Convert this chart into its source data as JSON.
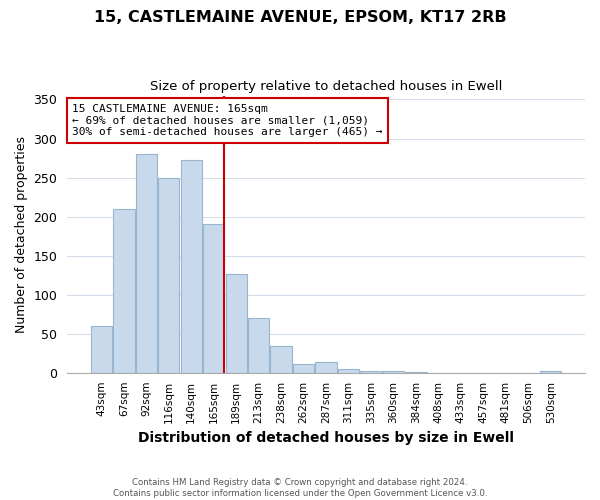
{
  "title": "15, CASTLEMAINE AVENUE, EPSOM, KT17 2RB",
  "subtitle": "Size of property relative to detached houses in Ewell",
  "xlabel": "Distribution of detached houses by size in Ewell",
  "ylabel": "Number of detached properties",
  "bar_labels": [
    "43sqm",
    "67sqm",
    "92sqm",
    "116sqm",
    "140sqm",
    "165sqm",
    "189sqm",
    "213sqm",
    "238sqm",
    "262sqm",
    "287sqm",
    "311sqm",
    "335sqm",
    "360sqm",
    "384sqm",
    "408sqm",
    "433sqm",
    "457sqm",
    "481sqm",
    "506sqm",
    "530sqm"
  ],
  "bar_values": [
    60,
    210,
    280,
    250,
    272,
    190,
    127,
    70,
    34,
    11,
    14,
    5,
    3,
    2,
    1,
    0,
    0,
    0,
    0,
    0,
    2
  ],
  "bar_color": "#c8d9ec",
  "bar_edge_color": "#9ab5d0",
  "vline_color": "#cc0000",
  "annotation_line1": "15 CASTLEMAINE AVENUE: 165sqm",
  "annotation_line2": "← 69% of detached houses are smaller (1,059)",
  "annotation_line3": "30% of semi-detached houses are larger (465) →",
  "annotation_box_edge_color": "#cc0000",
  "annotation_box_bg": "#ffffff",
  "ylim": [
    0,
    355
  ],
  "yticks": [
    0,
    50,
    100,
    150,
    200,
    250,
    300,
    350
  ],
  "title_fontsize": 11.5,
  "subtitle_fontsize": 9.5,
  "xlabel_fontsize": 10,
  "ylabel_fontsize": 9,
  "footer_text": "Contains HM Land Registry data © Crown copyright and database right 2024.\nContains public sector information licensed under the Open Government Licence v3.0.",
  "background_color": "#ffffff",
  "grid_color": "#d0dce8"
}
